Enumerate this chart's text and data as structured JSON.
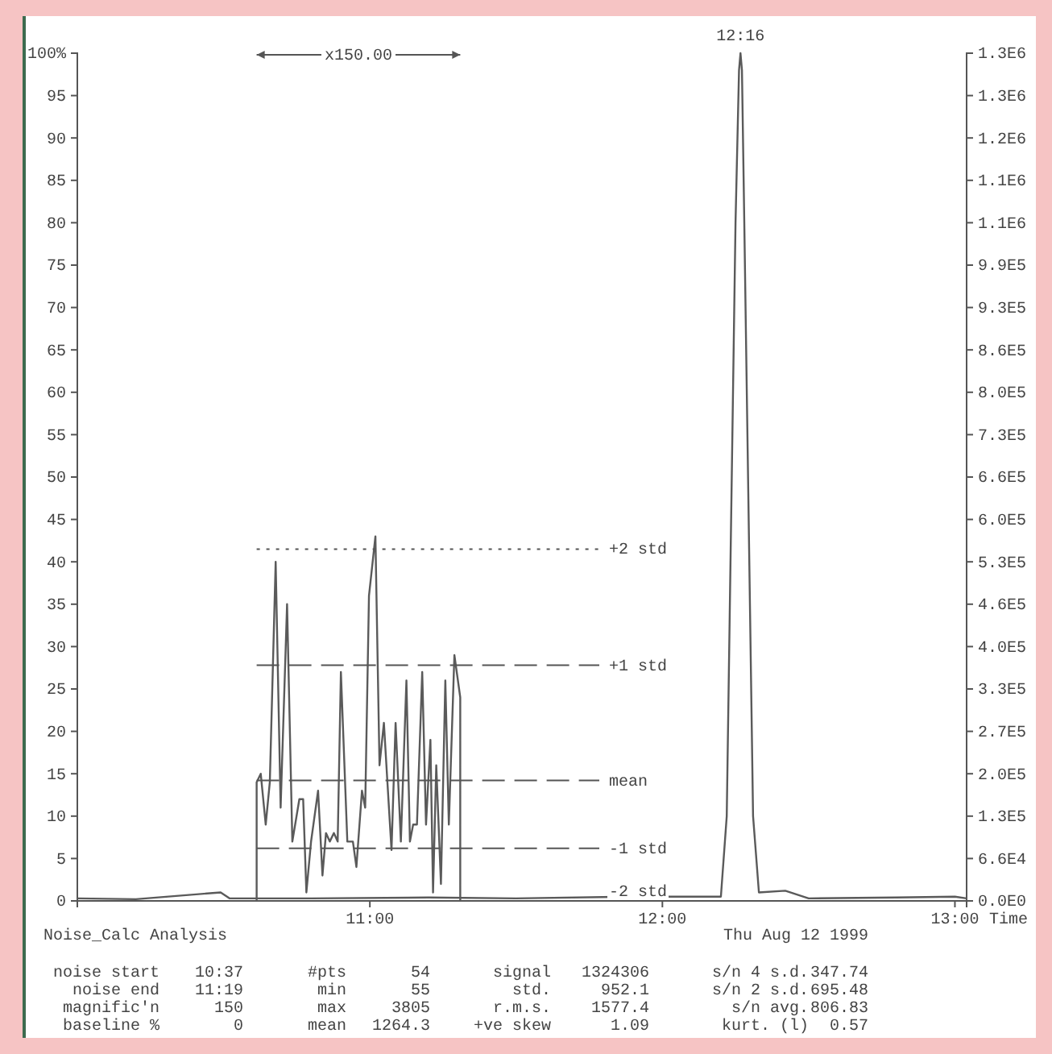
{
  "chart_data": {
    "type": "line",
    "title": "Noise_Calc Analysis",
    "subtitle": "Thu Aug 12  1999",
    "xlabel": "Time",
    "xlim": [
      10,
      13.04
    ],
    "xticks": [
      {
        "value": 11,
        "label": "11:00"
      },
      {
        "value": 12,
        "label": "12:00"
      },
      {
        "value": 13,
        "label": "13:00"
      }
    ],
    "ylim": [
      0,
      100
    ],
    "yticks": [
      0,
      5,
      10,
      15,
      20,
      25,
      30,
      35,
      40,
      45,
      50,
      55,
      60,
      65,
      70,
      75,
      80,
      85,
      90,
      95,
      {
        "value": 100,
        "label": "100%"
      }
    ],
    "y2lim": [
      0,
      1326000
    ],
    "y2ticks": [
      {
        "value": 0,
        "label": "0.0E0"
      },
      {
        "value": 66300,
        "label": "6.6E4"
      },
      {
        "value": 132600,
        "label": "1.3E5"
      },
      {
        "value": 198900,
        "label": "2.0E5"
      },
      {
        "value": 265200,
        "label": "2.7E5"
      },
      {
        "value": 331500,
        "label": "3.3E5"
      },
      {
        "value": 397800,
        "label": "4.0E5"
      },
      {
        "value": 464100,
        "label": "4.6E5"
      },
      {
        "value": 530400,
        "label": "5.3E5"
      },
      {
        "value": 596700,
        "label": "6.0E5"
      },
      {
        "value": 663000,
        "label": "6.6E5"
      },
      {
        "value": 729300,
        "label": "7.3E5"
      },
      {
        "value": 795600,
        "label": "8.0E5"
      },
      {
        "value": 861900,
        "label": "8.6E5"
      },
      {
        "value": 928200,
        "label": "9.3E5"
      },
      {
        "value": 994500,
        "label": "9.9E5"
      },
      {
        "value": 1060800,
        "label": "1.1E6"
      },
      {
        "value": 1127100,
        "label": "1.1E6"
      },
      {
        "value": 1193400,
        "label": "1.2E6"
      },
      {
        "value": 1259700,
        "label": "1.3E6"
      },
      {
        "value": 1326000,
        "label": "1.3E6"
      }
    ],
    "line_style": "solid",
    "marker": "none",
    "grid": false,
    "series": [
      {
        "color": "#5a5a5a",
        "x": [
          10,
          10.2,
          10.49,
          10.52,
          10.8,
          11.2,
          11.5,
          11.9,
          12.2,
          12.22,
          12.25,
          12.262,
          12.267,
          12.272,
          12.28,
          12.31,
          12.33,
          12.42,
          12.5,
          12.8,
          13.0,
          13.04
        ],
        "values": [
          0.3,
          0.2,
          1,
          0.3,
          0.3,
          0.4,
          0.3,
          0.5,
          0.5,
          10,
          80,
          98,
          100,
          98,
          80,
          10,
          1,
          1.2,
          0.3,
          0.4,
          0.5,
          0.3
        ]
      },
      {
        "color": "#5a5a5a",
        "x": [
          10.613,
          10.613,
          10.627,
          10.644,
          10.658,
          10.678,
          10.695,
          10.717,
          10.735,
          10.759,
          10.772,
          10.783,
          10.799,
          10.823,
          10.838,
          10.85,
          10.863,
          10.877,
          10.89,
          10.901,
          10.923,
          10.942,
          10.954,
          10.973,
          10.984,
          10.997,
          11.019,
          11.033,
          11.048,
          11.06,
          11.074,
          11.088,
          11.106,
          11.125,
          11.137,
          11.148,
          11.161,
          11.179,
          11.192,
          11.207,
          11.216,
          11.227,
          11.243,
          11.258,
          11.27,
          11.289,
          11.309,
          11.309
        ],
        "values": [
          0,
          14,
          15,
          9,
          14,
          40,
          11,
          35,
          7,
          12,
          12,
          1,
          7,
          13,
          3,
          8,
          7,
          8,
          7,
          27,
          7,
          7,
          4,
          13,
          11,
          36,
          43,
          16,
          21,
          14,
          6,
          21,
          7,
          26,
          7,
          9,
          9,
          27,
          9,
          19,
          1,
          16,
          2,
          26,
          9,
          29,
          24,
          0
        ]
      }
    ],
    "ref_lines": [
      {
        "axis": "y",
        "value": 41.5,
        "label": "+2 std",
        "line_style": "dotted"
      },
      {
        "axis": "y",
        "value": 27.8,
        "label": "+1 std",
        "line_style": "dashed"
      },
      {
        "axis": "y",
        "value": 14.2,
        "label": "mean",
        "line_style": "dashed"
      },
      {
        "axis": "y",
        "value": 6.2,
        "label": "-1 std",
        "line_style": "dashed"
      }
    ],
    "annotations": [
      "x150.00",
      "-2 std",
      {
        "text": "12:16",
        "x": 12.267,
        "y": 100
      },
      "noise start",
      "10:37",
      "#pts",
      "54",
      "signal",
      "1324306",
      "s/n 4 s.d.",
      "347.74",
      "noise end",
      "11:19",
      "min",
      "55",
      "std.",
      "952.1",
      "s/n 2 s.d.",
      "695.48",
      "magnific'n",
      "150",
      "max",
      "3805",
      "r.m.s.",
      "1577.4",
      "s/n avg.",
      "806.83",
      "baseline %",
      "0",
      "mean",
      "1264.3",
      "+ve skew",
      "1.09",
      "kurt. (l)",
      "0.57"
    ]
  }
}
